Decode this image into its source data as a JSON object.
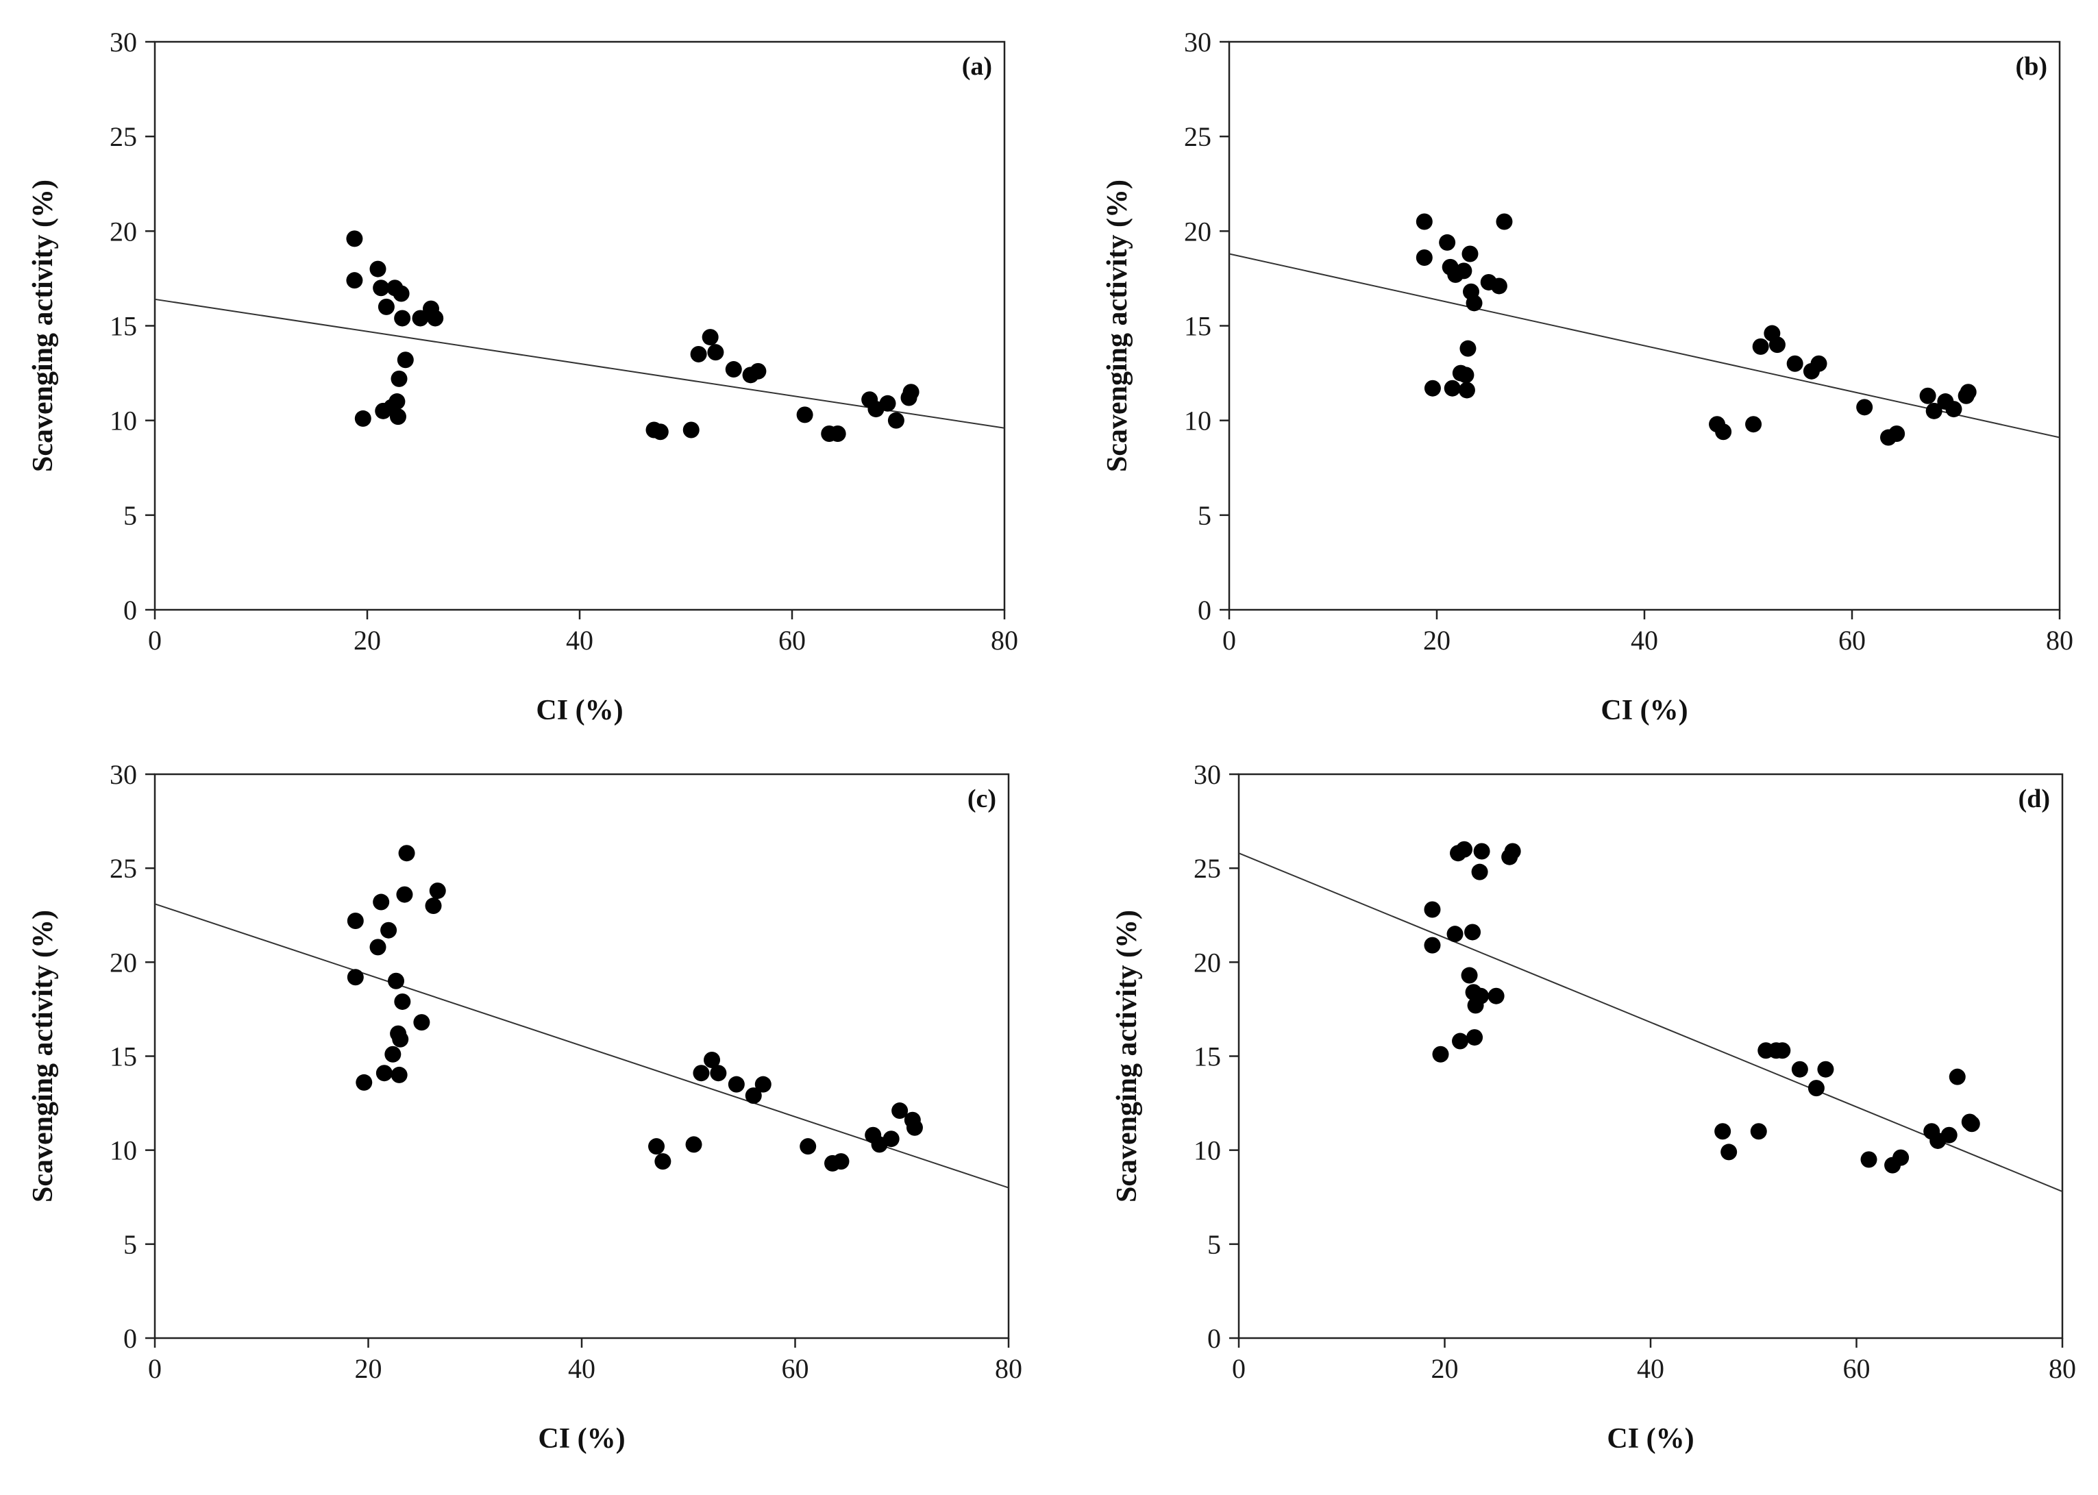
{
  "figure": {
    "xlabel": "CI (%)",
    "ylabel": "Scavenging activity (%)"
  },
  "chart_data": [
    {
      "type": "scatter",
      "panel": "(a)",
      "xlabel": "CI (%)",
      "ylabel": "Scavenging activity (%)",
      "xlim": [
        0,
        80
      ],
      "ylim": [
        0,
        30
      ],
      "xticks": [
        "0",
        "20",
        "40",
        "60",
        "80"
      ],
      "yticks": [
        "0",
        "5",
        "10",
        "15",
        "20",
        "25",
        "30"
      ],
      "trendline": {
        "x": [
          0,
          80
        ],
        "y": [
          16.4,
          9.6
        ]
      },
      "points": [
        [
          18.8,
          19.6
        ],
        [
          18.8,
          17.4
        ],
        [
          19.6,
          10.1
        ],
        [
          21.0,
          18.0
        ],
        [
          21.3,
          17.0
        ],
        [
          21.5,
          10.5
        ],
        [
          21.8,
          16.0
        ],
        [
          22.3,
          10.7
        ],
        [
          22.6,
          17.0
        ],
        [
          22.8,
          11.0
        ],
        [
          22.9,
          10.2
        ],
        [
          23.0,
          12.2
        ],
        [
          23.2,
          16.7
        ],
        [
          23.3,
          15.4
        ],
        [
          23.6,
          13.2
        ],
        [
          25.0,
          15.4
        ],
        [
          26.0,
          15.9
        ],
        [
          26.4,
          15.4
        ],
        [
          47.0,
          9.5
        ],
        [
          47.6,
          9.4
        ],
        [
          50.5,
          9.5
        ],
        [
          51.2,
          13.5
        ],
        [
          52.3,
          14.4
        ],
        [
          52.8,
          13.6
        ],
        [
          54.5,
          12.7
        ],
        [
          56.1,
          12.4
        ],
        [
          56.8,
          12.6
        ],
        [
          61.2,
          10.3
        ],
        [
          63.5,
          9.3
        ],
        [
          64.3,
          9.3
        ],
        [
          67.3,
          11.1
        ],
        [
          67.9,
          10.6
        ],
        [
          69.0,
          10.9
        ],
        [
          69.8,
          10.0
        ],
        [
          71.0,
          11.2
        ],
        [
          71.2,
          11.5
        ]
      ]
    },
    {
      "type": "scatter",
      "panel": "(b)",
      "xlabel": "CI (%)",
      "ylabel": "Scavenging activity (%)",
      "xlim": [
        0,
        80
      ],
      "ylim": [
        0,
        30
      ],
      "xticks": [
        "0",
        "20",
        "40",
        "60",
        "80"
      ],
      "yticks": [
        "0",
        "5",
        "10",
        "15",
        "20",
        "25",
        "30"
      ],
      "trendline": {
        "x": [
          0,
          80
        ],
        "y": [
          18.8,
          9.1
        ]
      },
      "points": [
        [
          18.8,
          20.5
        ],
        [
          18.8,
          18.6
        ],
        [
          19.6,
          11.7
        ],
        [
          21.0,
          19.4
        ],
        [
          21.3,
          18.1
        ],
        [
          21.5,
          11.7
        ],
        [
          21.8,
          17.7
        ],
        [
          22.3,
          12.5
        ],
        [
          22.6,
          17.9
        ],
        [
          22.8,
          12.4
        ],
        [
          22.9,
          11.6
        ],
        [
          23.0,
          13.8
        ],
        [
          23.2,
          18.8
        ],
        [
          23.3,
          16.8
        ],
        [
          23.6,
          16.2
        ],
        [
          25.0,
          17.3
        ],
        [
          26.0,
          17.1
        ],
        [
          26.5,
          20.5
        ],
        [
          47.0,
          9.8
        ],
        [
          47.6,
          9.4
        ],
        [
          50.5,
          9.8
        ],
        [
          51.2,
          13.9
        ],
        [
          52.3,
          14.6
        ],
        [
          52.8,
          14.0
        ],
        [
          54.5,
          13.0
        ],
        [
          56.1,
          12.6
        ],
        [
          56.8,
          13.0
        ],
        [
          61.2,
          10.7
        ],
        [
          63.5,
          9.1
        ],
        [
          64.3,
          9.3
        ],
        [
          67.3,
          11.3
        ],
        [
          67.9,
          10.5
        ],
        [
          69.0,
          11.0
        ],
        [
          69.8,
          10.6
        ],
        [
          71.0,
          11.3
        ],
        [
          71.2,
          11.5
        ]
      ]
    },
    {
      "type": "scatter",
      "panel": "(c)",
      "xlabel": "CI (%)",
      "ylabel": "Scavenging activity (%)",
      "xlim": [
        0,
        80
      ],
      "ylim": [
        0,
        30
      ],
      "xticks": [
        "0",
        "20",
        "40",
        "60",
        "80"
      ],
      "yticks": [
        "0",
        "5",
        "10",
        "15",
        "20",
        "25",
        "30"
      ],
      "trendline": {
        "x": [
          0,
          80
        ],
        "y": [
          23.1,
          8.0
        ]
      },
      "points": [
        [
          18.8,
          22.2
        ],
        [
          18.8,
          19.2
        ],
        [
          19.6,
          13.6
        ],
        [
          20.9,
          20.8
        ],
        [
          21.2,
          23.2
        ],
        [
          21.5,
          14.1
        ],
        [
          21.9,
          21.7
        ],
        [
          22.3,
          15.1
        ],
        [
          22.6,
          19.0
        ],
        [
          22.8,
          16.2
        ],
        [
          22.9,
          14.0
        ],
        [
          23.0,
          15.9
        ],
        [
          23.2,
          17.9
        ],
        [
          23.4,
          23.6
        ],
        [
          23.6,
          25.8
        ],
        [
          25.0,
          16.8
        ],
        [
          26.1,
          23.0
        ],
        [
          26.5,
          23.8
        ],
        [
          47.0,
          10.2
        ],
        [
          47.6,
          9.4
        ],
        [
          50.5,
          10.3
        ],
        [
          51.2,
          14.1
        ],
        [
          52.2,
          14.8
        ],
        [
          52.8,
          14.1
        ],
        [
          54.5,
          13.5
        ],
        [
          56.1,
          12.9
        ],
        [
          57.0,
          13.5
        ],
        [
          61.2,
          10.2
        ],
        [
          63.5,
          9.3
        ],
        [
          64.3,
          9.4
        ],
        [
          67.3,
          10.8
        ],
        [
          67.9,
          10.3
        ],
        [
          69.0,
          10.6
        ],
        [
          69.8,
          12.1
        ],
        [
          71.0,
          11.6
        ],
        [
          71.2,
          11.2
        ]
      ]
    },
    {
      "type": "scatter",
      "panel": "(d)",
      "xlabel": "CI (%)",
      "ylabel": "Scavenging activity (%)",
      "xlim": [
        0,
        80
      ],
      "ylim": [
        0,
        30
      ],
      "xticks": [
        "0",
        "20",
        "40",
        "60",
        "80"
      ],
      "yticks": [
        "0",
        "5",
        "10",
        "15",
        "20",
        "25",
        "30"
      ],
      "trendline": {
        "x": [
          0,
          80
        ],
        "y": [
          25.8,
          7.8
        ]
      },
      "points": [
        [
          18.8,
          22.8
        ],
        [
          18.8,
          20.9
        ],
        [
          19.6,
          15.1
        ],
        [
          21.0,
          21.5
        ],
        [
          21.3,
          25.8
        ],
        [
          21.5,
          15.8
        ],
        [
          21.9,
          26.0
        ],
        [
          22.4,
          19.3
        ],
        [
          22.7,
          21.6
        ],
        [
          22.8,
          18.4
        ],
        [
          22.9,
          16.0
        ],
        [
          23.0,
          17.7
        ],
        [
          23.4,
          24.8
        ],
        [
          23.5,
          18.2
        ],
        [
          23.6,
          25.9
        ],
        [
          25.0,
          18.2
        ],
        [
          26.3,
          25.6
        ],
        [
          26.6,
          25.9
        ],
        [
          47.0,
          11.0
        ],
        [
          47.6,
          9.9
        ],
        [
          50.5,
          11.0
        ],
        [
          51.2,
          15.3
        ],
        [
          52.2,
          15.3
        ],
        [
          52.8,
          15.3
        ],
        [
          54.5,
          14.3
        ],
        [
          56.1,
          13.3
        ],
        [
          57.0,
          14.3
        ],
        [
          61.2,
          9.5
        ],
        [
          63.5,
          9.2
        ],
        [
          64.3,
          9.6
        ],
        [
          67.3,
          11.0
        ],
        [
          67.9,
          10.5
        ],
        [
          69.0,
          10.8
        ],
        [
          69.8,
          13.9
        ],
        [
          71.0,
          11.5
        ],
        [
          71.2,
          11.4
        ]
      ]
    }
  ]
}
